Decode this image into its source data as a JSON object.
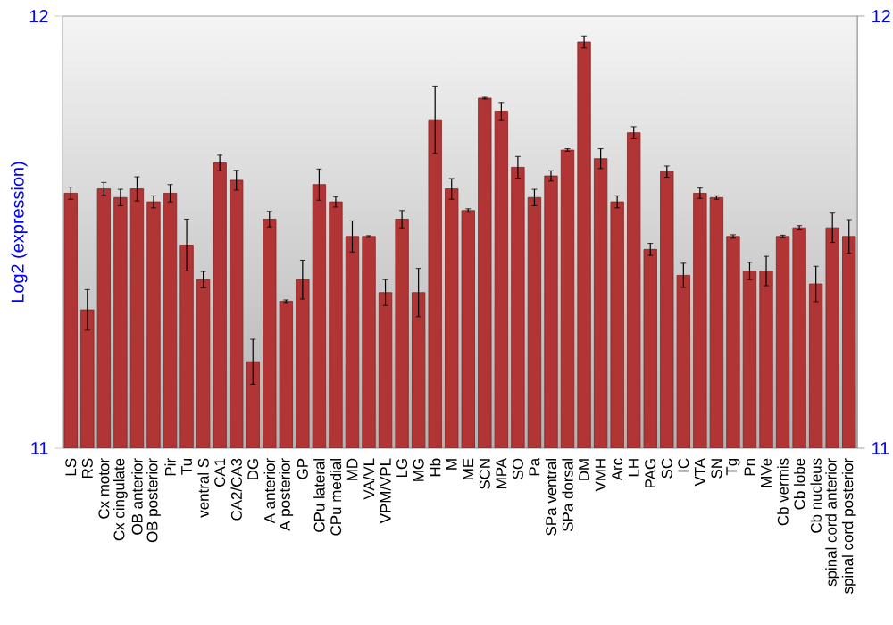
{
  "chart_data": {
    "type": "bar",
    "ylabel": "Log2 (expression)",
    "categories": [
      "LS",
      "RS",
      "Cx motor",
      "Cx cingulate",
      "OB anterior",
      "OB posterior",
      "Pir",
      "Tu",
      "ventral S",
      "CA1",
      "CA2/CA3",
      "DG",
      "A anterior",
      "A posterior",
      "GP",
      "CPu lateral",
      "CPu medial",
      "MD",
      "VA/VL",
      "VPM/VPL",
      "LG",
      "MG",
      "Hb",
      "M",
      "ME",
      "SCN",
      "MPA",
      "SO",
      "Pa",
      "SPa ventral",
      "SPa dorsal",
      "DM",
      "VMH",
      "Arc",
      "LH",
      "PAG",
      "SC",
      "IC",
      "VTA",
      "SN",
      "Tg",
      "Pn",
      "MVe",
      "Cb vermis",
      "Cb lobe",
      "Cb nucleus",
      "spinal cord anterior",
      "spinal cord posterior"
    ],
    "values": [
      11.59,
      11.32,
      11.6,
      11.58,
      11.6,
      11.57,
      11.59,
      11.47,
      11.39,
      11.66,
      11.62,
      11.2,
      11.53,
      11.34,
      11.39,
      11.61,
      11.57,
      11.49,
      11.49,
      11.36,
      11.53,
      11.36,
      11.76,
      11.6,
      11.55,
      11.81,
      11.78,
      11.65,
      11.58,
      11.63,
      11.69,
      11.94,
      11.67,
      11.57,
      11.73,
      11.46,
      11.64,
      11.4,
      11.59,
      11.58,
      11.49,
      11.41,
      11.41,
      11.49,
      11.51,
      11.38,
      11.51,
      11.49
    ],
    "errors": [
      0.014,
      0.047,
      0.015,
      0.019,
      0.028,
      0.014,
      0.02,
      0.06,
      0.019,
      0.018,
      0.023,
      0.052,
      0.018,
      0.003,
      0.045,
      0.036,
      0.012,
      0.036,
      0.002,
      0.03,
      0.02,
      0.056,
      0.078,
      0.024,
      0.004,
      0.002,
      0.02,
      0.025,
      0.019,
      0.012,
      0.003,
      0.014,
      0.023,
      0.014,
      0.014,
      0.014,
      0.013,
      0.028,
      0.012,
      0.004,
      0.004,
      0.02,
      0.034,
      0.003,
      0.005,
      0.041,
      0.034,
      0.039
    ],
    "color": "#b23535",
    "ylim": [
      11,
      12
    ],
    "yticks": [
      11,
      12
    ],
    "y2lim": [
      11,
      12
    ],
    "y2ticks": [
      11,
      12
    ]
  }
}
